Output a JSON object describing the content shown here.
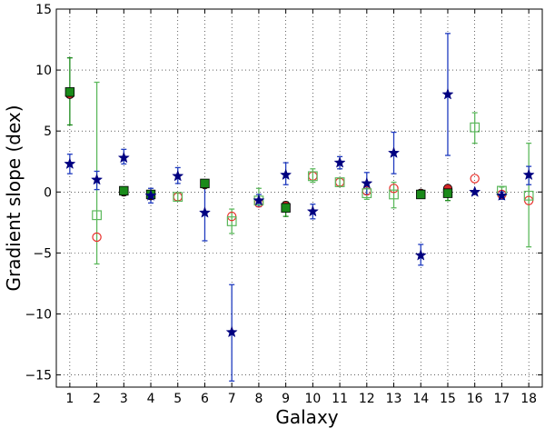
{
  "chart_data": {
    "type": "scatter",
    "xlabel": "Galaxy",
    "ylabel": "Gradient slope (dex)",
    "xlim": [
      0.5,
      18.5
    ],
    "ylim": [
      -16,
      15
    ],
    "xticks": [
      1,
      2,
      3,
      4,
      5,
      6,
      7,
      8,
      9,
      10,
      11,
      12,
      13,
      14,
      15,
      16,
      17,
      18
    ],
    "yticks": [
      15,
      10,
      5,
      0,
      -5,
      -10,
      -15
    ],
    "grid": true,
    "grid_style": "dotted",
    "series": [
      {
        "marker": "circle",
        "colors": {
          "filled": "#d62728",
          "open": "#e8302b"
        },
        "points": [
          {
            "x": 1,
            "y": 8.0,
            "filled": true
          },
          {
            "x": 2,
            "y": -3.7,
            "filled": false
          },
          {
            "x": 3,
            "y": 0.0,
            "filled": true
          },
          {
            "x": 4,
            "y": -0.3,
            "filled": true
          },
          {
            "x": 5,
            "y": -0.4,
            "filled": false
          },
          {
            "x": 6,
            "y": 0.6,
            "filled": true
          },
          {
            "x": 7,
            "y": -2.0,
            "filled": false
          },
          {
            "x": 8,
            "y": -0.9,
            "filled": false
          },
          {
            "x": 9,
            "y": -1.1,
            "filled": true
          },
          {
            "x": 10,
            "y": 1.3,
            "filled": false
          },
          {
            "x": 11,
            "y": 0.8,
            "filled": false
          },
          {
            "x": 12,
            "y": 0.1,
            "filled": false
          },
          {
            "x": 13,
            "y": 0.3,
            "filled": false
          },
          {
            "x": 14,
            "y": -0.1,
            "filled": true
          },
          {
            "x": 15,
            "y": 0.3,
            "filled": true
          },
          {
            "x": 16,
            "y": 1.1,
            "filled": false
          },
          {
            "x": 17,
            "y": -0.2,
            "filled": false
          },
          {
            "x": 18,
            "y": -0.7,
            "filled": false
          }
        ]
      },
      {
        "marker": "square",
        "colors": {
          "filled": "#1a8a1a",
          "open": "#5cb85c"
        },
        "points": [
          {
            "x": 1,
            "y": 8.2,
            "lo": 5.5,
            "hi": 11.0,
            "filled": true
          },
          {
            "x": 2,
            "y": -1.9,
            "lo": -5.9,
            "hi": 9.0,
            "filled": false
          },
          {
            "x": 3,
            "y": 0.1,
            "lo": -0.1,
            "hi": 0.3,
            "filled": true
          },
          {
            "x": 4,
            "y": -0.2,
            "lo": -0.4,
            "hi": 0.0,
            "filled": true
          },
          {
            "x": 5,
            "y": -0.4,
            "lo": -0.7,
            "hi": -0.1,
            "filled": false
          },
          {
            "x": 6,
            "y": 0.7,
            "lo": 0.4,
            "hi": 1.0,
            "filled": true
          },
          {
            "x": 7,
            "y": -2.4,
            "lo": -3.4,
            "hi": -1.4,
            "filled": false
          },
          {
            "x": 8,
            "y": -0.7,
            "lo": -1.2,
            "hi": 0.3,
            "filled": false
          },
          {
            "x": 9,
            "y": -1.3,
            "lo": -2.0,
            "hi": -0.8,
            "filled": true
          },
          {
            "x": 10,
            "y": 1.3,
            "lo": 0.8,
            "hi": 1.9,
            "filled": false
          },
          {
            "x": 11,
            "y": 0.8,
            "lo": 0.5,
            "hi": 1.1,
            "filled": false
          },
          {
            "x": 12,
            "y": -0.1,
            "lo": -0.6,
            "hi": 0.3,
            "filled": false
          },
          {
            "x": 13,
            "y": -0.2,
            "lo": -1.3,
            "hi": 0.8,
            "filled": false
          },
          {
            "x": 14,
            "y": -0.2,
            "lo": -0.5,
            "hi": 0.1,
            "filled": true
          },
          {
            "x": 15,
            "y": -0.1,
            "lo": -0.7,
            "hi": 0.3,
            "filled": true
          },
          {
            "x": 16,
            "y": 5.3,
            "lo": 4.0,
            "hi": 6.5,
            "filled": false
          },
          {
            "x": 17,
            "y": 0.1,
            "lo": -0.3,
            "hi": 0.4,
            "filled": false
          },
          {
            "x": 18,
            "y": -0.3,
            "lo": -4.5,
            "hi": 4.0,
            "filled": false
          }
        ]
      },
      {
        "marker": "star",
        "colors": {
          "filled": "#000080"
        },
        "points": [
          {
            "x": 1,
            "y": 2.3,
            "lo": 1.5,
            "hi": 3.1
          },
          {
            "x": 2,
            "y": 1.0,
            "lo": 0.2,
            "hi": 1.7
          },
          {
            "x": 3,
            "y": 2.8,
            "lo": 2.3,
            "hi": 3.5
          },
          {
            "x": 4,
            "y": -0.3,
            "lo": -0.9,
            "hi": 0.3
          },
          {
            "x": 5,
            "y": 1.3,
            "lo": 0.7,
            "hi": 2.0
          },
          {
            "x": 6,
            "y": -1.7,
            "lo": -4.0,
            "hi": 0.5
          },
          {
            "x": 7,
            "y": -11.5,
            "lo": -15.5,
            "hi": -7.6
          },
          {
            "x": 8,
            "y": -0.7,
            "lo": -1.2,
            "hi": -0.2
          },
          {
            "x": 9,
            "y": 1.4,
            "lo": 0.6,
            "hi": 2.4
          },
          {
            "x": 10,
            "y": -1.6,
            "lo": -2.2,
            "hi": -1.0
          },
          {
            "x": 11,
            "y": 2.4,
            "lo": 1.9,
            "hi": 2.9
          },
          {
            "x": 12,
            "y": 0.7,
            "lo": -0.2,
            "hi": 1.6
          },
          {
            "x": 13,
            "y": 3.2,
            "lo": 1.5,
            "hi": 4.9
          },
          {
            "x": 14,
            "y": -5.2,
            "lo": -6.0,
            "hi": -4.3
          },
          {
            "x": 15,
            "y": 8.0,
            "lo": 3.0,
            "hi": 13.0
          },
          {
            "x": 16,
            "y": 0.0
          },
          {
            "x": 17,
            "y": -0.3,
            "lo": -0.6,
            "hi": 0.0
          },
          {
            "x": 18,
            "y": 1.4,
            "lo": 0.6,
            "hi": 2.1
          }
        ]
      }
    ]
  }
}
